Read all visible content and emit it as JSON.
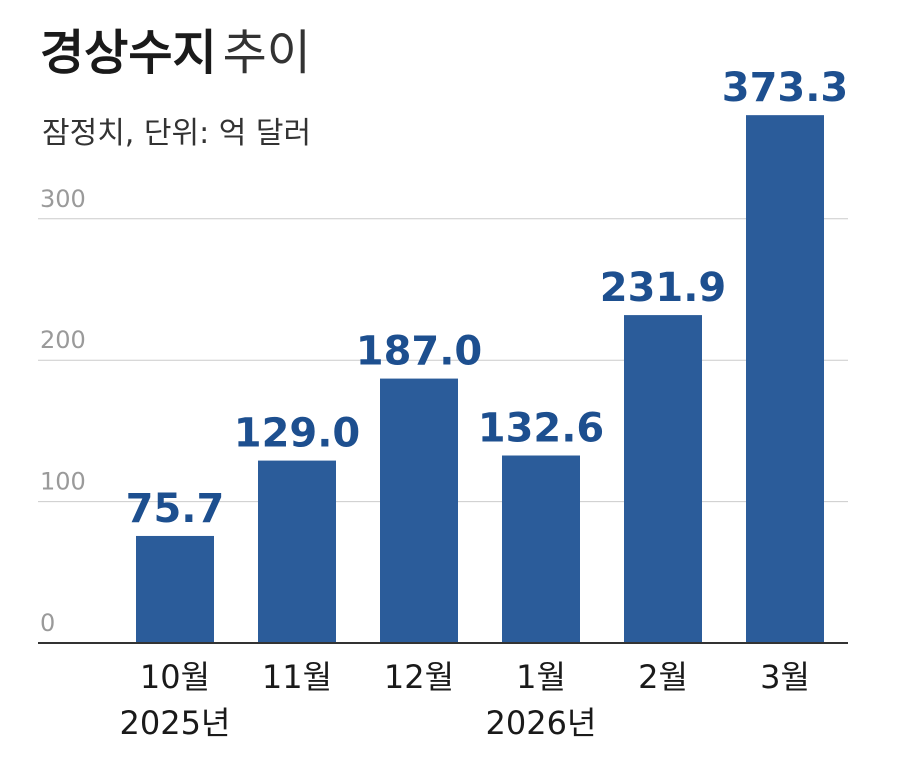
{
  "header": {
    "title_bold": "경상수지",
    "title_light": "추이",
    "subtitle": "잠정치, 단위: 억 달러"
  },
  "chart_data": {
    "type": "bar",
    "title": "경상수지 추이",
    "subtitle": "잠정치, 단위: 억 달러",
    "categories": [
      "10월",
      "11월",
      "12월",
      "1월",
      "2월",
      "3월"
    ],
    "year_labels": [
      {
        "category": "10월",
        "label": "2025년"
      },
      {
        "category": "1월",
        "label": "2026년"
      }
    ],
    "values": [
      75.7,
      129.0,
      187.0,
      132.6,
      231.9,
      373.3
    ],
    "value_labels": [
      "75.7",
      "129.0",
      "187.0",
      "132.6",
      "231.9",
      "373.3"
    ],
    "ylim": [
      0,
      400
    ],
    "yticks": [
      0,
      100,
      200,
      300
    ],
    "ytick_labels": [
      "0",
      "100",
      "200",
      "300"
    ],
    "grid": true,
    "bar_color": "#2b5c9a",
    "label_color": "#1d4f8f",
    "grid_color": "#cccccc"
  }
}
